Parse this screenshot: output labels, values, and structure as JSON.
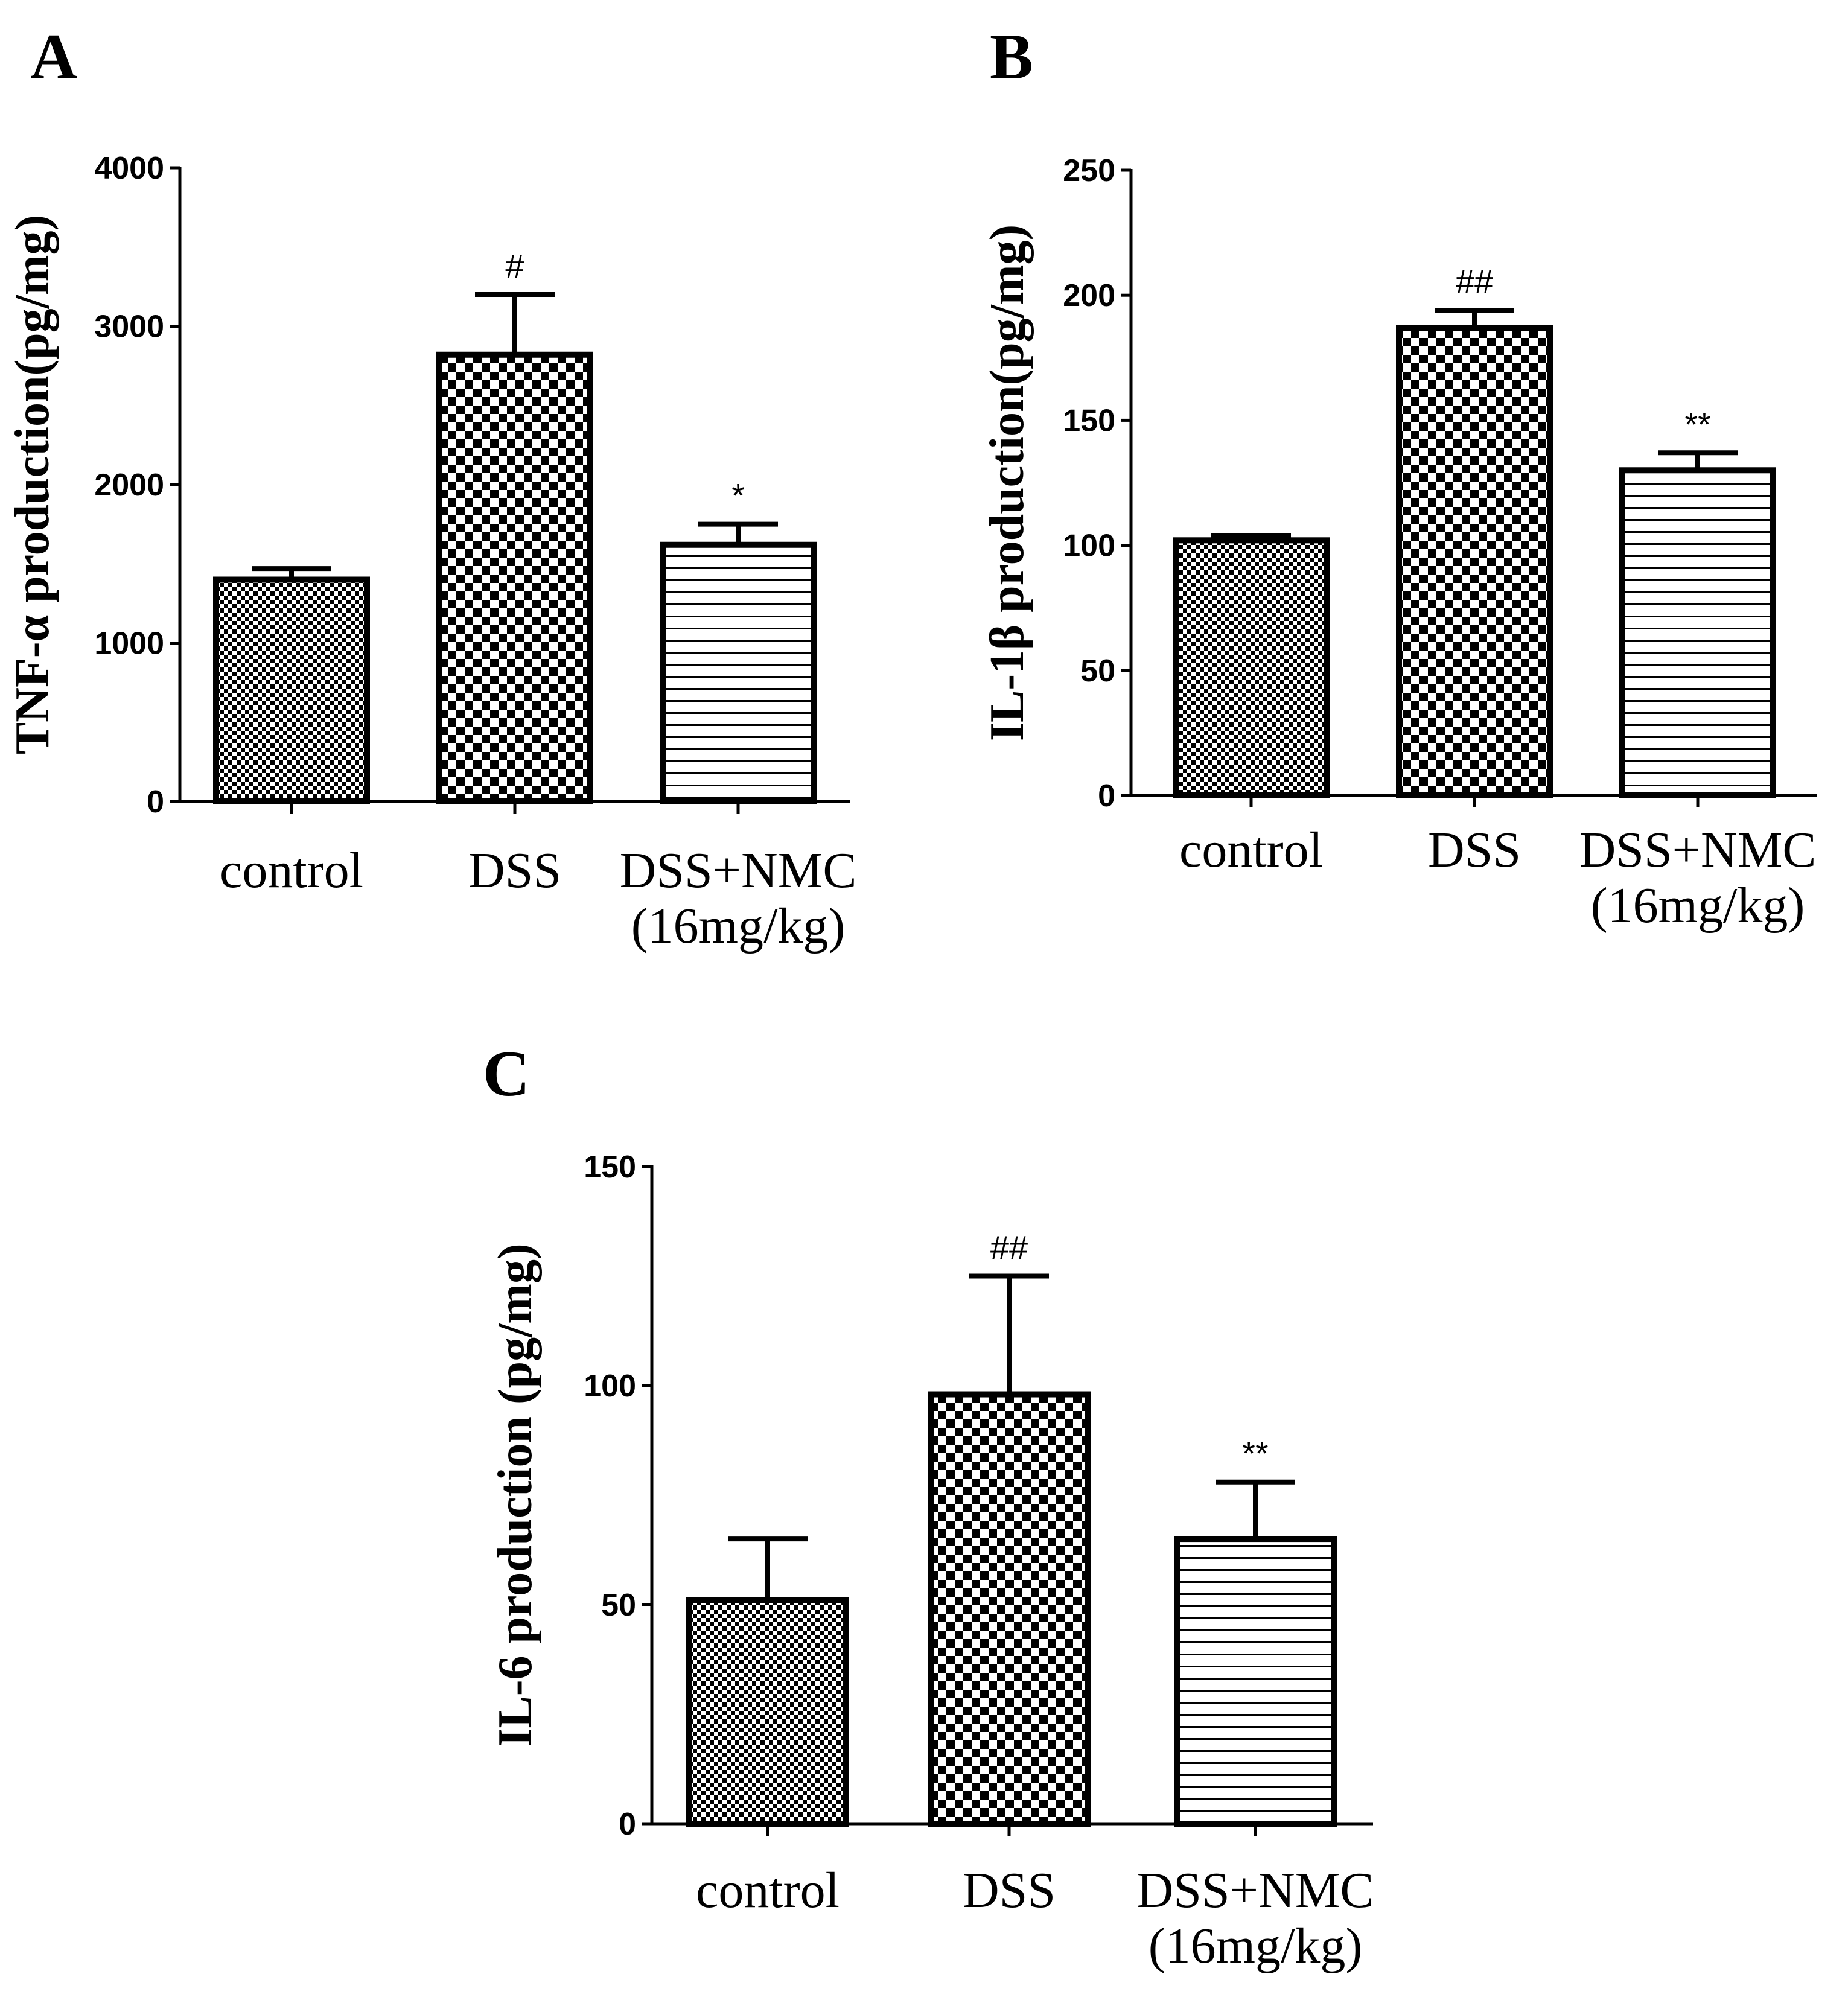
{
  "chart_data": [
    {
      "panel": "A",
      "type": "bar",
      "categories": [
        "control",
        "DSS",
        "DSS+NMC (16mg/kg)"
      ],
      "category_lines": [
        [
          "control"
        ],
        [
          "DSS"
        ],
        [
          "DSS+NMC",
          "(16mg/kg)"
        ]
      ],
      "values": [
        1400,
        2820,
        1620
      ],
      "errors": [
        70,
        380,
        130
      ],
      "significance": [
        "",
        "#",
        "*"
      ],
      "patterns": [
        "fine-check",
        "check",
        "hlines"
      ],
      "ylabel": "TNF-α  production(pg/mg)",
      "ylim": [
        0,
        4000
      ],
      "yticks": [
        0,
        1000,
        2000,
        3000,
        4000
      ],
      "ytick_labels": [
        "0",
        "1000",
        "2000",
        "3000",
        "4000"
      ]
    },
    {
      "panel": "B",
      "type": "bar",
      "categories": [
        "control",
        "DSS",
        "DSS+NMC (16mg/kg)"
      ],
      "category_lines": [
        [
          "control"
        ],
        [
          "DSS"
        ],
        [
          "DSS+NMC",
          "(16mg/kg)"
        ]
      ],
      "values": [
        102,
        187,
        130
      ],
      "errors": [
        2,
        7,
        7
      ],
      "significance": [
        "",
        "##",
        "**"
      ],
      "patterns": [
        "fine-check",
        "check",
        "hlines"
      ],
      "ylabel": "IL-1β production(pg/mg)",
      "ylim": [
        0,
        250
      ],
      "yticks": [
        0,
        50,
        100,
        150,
        200,
        250
      ],
      "ytick_labels": [
        "0",
        "50",
        "100",
        "150",
        "200",
        "250"
      ]
    },
    {
      "panel": "C",
      "type": "bar",
      "categories": [
        "control",
        "DSS",
        "DSS+NMC (16mg/kg)"
      ],
      "category_lines": [
        [
          "control"
        ],
        [
          "DSS"
        ],
        [
          "DSS+NMC",
          "(16mg/kg)"
        ]
      ],
      "values": [
        51,
        98,
        65
      ],
      "errors": [
        14,
        27,
        13
      ],
      "significance": [
        "",
        "##",
        "**"
      ],
      "patterns": [
        "fine-check",
        "check",
        "hlines"
      ],
      "ylabel": "IL-6 production (pg/mg)",
      "ylim": [
        0,
        150
      ],
      "yticks": [
        0,
        50,
        100,
        150
      ],
      "ytick_labels": [
        "0",
        "50",
        "100",
        "150"
      ]
    }
  ]
}
